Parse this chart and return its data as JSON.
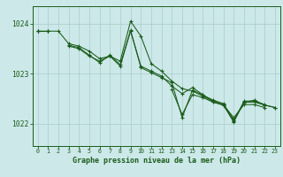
{
  "title": "Graphe pression niveau de la mer (hPa)",
  "bg_color": "#cce8e8",
  "grid_color": "#aacccc",
  "line_color": "#1a5c1a",
  "x_ticks": [
    0,
    1,
    2,
    3,
    4,
    5,
    6,
    7,
    8,
    9,
    10,
    11,
    12,
    13,
    14,
    15,
    16,
    17,
    18,
    19,
    20,
    21,
    22,
    23
  ],
  "y_ticks": [
    1022,
    1023,
    1024
  ],
  "ylim": [
    1021.55,
    1024.35
  ],
  "xlim": [
    -0.5,
    23.5
  ],
  "series": [
    [
      1023.85,
      1023.85,
      1023.85,
      1023.6,
      1023.55,
      1023.45,
      1023.3,
      1023.35,
      1023.25,
      1024.05,
      1023.75,
      1023.2,
      1023.05,
      1022.85,
      1022.7,
      1022.65,
      1022.55,
      1022.45,
      1022.38,
      1022.05,
      1022.45,
      1022.45,
      1022.38,
      null
    ],
    [
      1023.85,
      1023.85,
      null,
      1023.55,
      1023.5,
      1023.35,
      1023.25,
      1023.35,
      1023.15,
      1023.85,
      1023.15,
      1023.05,
      1022.95,
      1022.75,
      1022.6,
      1022.72,
      1022.58,
      1022.43,
      1022.37,
      1022.12,
      1022.38,
      1022.38,
      1022.32,
      null
    ],
    [
      null,
      null,
      null,
      null,
      null,
      null,
      null,
      null,
      null,
      null,
      null,
      null,
      null,
      1022.68,
      1022.18,
      1022.58,
      1022.52,
      1022.43,
      1022.37,
      1022.03,
      1022.43,
      1022.43,
      1022.37,
      1022.32
    ],
    [
      1023.85,
      1023.85,
      null,
      1023.57,
      1023.52,
      1023.37,
      1023.22,
      1023.37,
      1023.18,
      1023.87,
      1023.12,
      1023.02,
      1022.92,
      1022.82,
      1022.12,
      1022.67,
      1022.57,
      1022.47,
      1022.4,
      1022.07,
      1022.42,
      1022.47,
      1022.37,
      1022.32
    ]
  ]
}
